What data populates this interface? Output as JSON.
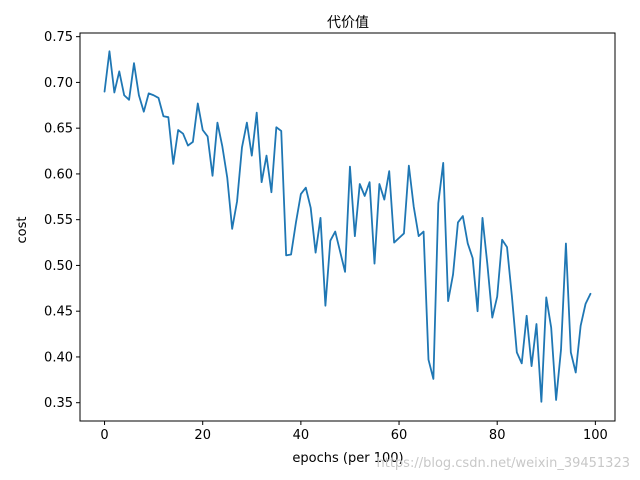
{
  "chart_data": {
    "type": "line",
    "title": "代价值",
    "xlabel": "epochs (per 100)",
    "ylabel": "cost",
    "xlim": [
      -5,
      104
    ],
    "ylim": [
      0.33,
      0.754
    ],
    "x_ticks": [
      0,
      20,
      40,
      60,
      80,
      100
    ],
    "y_ticks": [
      0.35,
      0.4,
      0.45,
      0.5,
      0.55,
      0.6,
      0.65,
      0.7,
      0.75
    ],
    "y_tick_labels": [
      "0.35",
      "0.40",
      "0.45",
      "0.50",
      "0.55",
      "0.60",
      "0.65",
      "0.70",
      "0.75"
    ],
    "grid": false,
    "series": [
      {
        "color": "#1f77b4",
        "x": [
          0,
          1,
          2,
          3,
          4,
          5,
          6,
          7,
          8,
          9,
          10,
          11,
          12,
          13,
          14,
          15,
          16,
          17,
          18,
          19,
          20,
          21,
          22,
          23,
          24,
          25,
          26,
          27,
          28,
          29,
          30,
          31,
          32,
          33,
          34,
          35,
          36,
          37,
          38,
          39,
          40,
          41,
          42,
          43,
          44,
          45,
          46,
          47,
          48,
          49,
          50,
          51,
          52,
          53,
          54,
          55,
          56,
          57,
          58,
          59,
          60,
          61,
          62,
          63,
          64,
          65,
          66,
          67,
          68,
          69,
          70,
          71,
          72,
          73,
          74,
          75,
          76,
          77,
          78,
          79,
          80,
          81,
          82,
          83,
          84,
          85,
          86,
          87,
          88,
          89,
          90,
          91,
          92,
          93,
          94,
          95,
          96,
          97,
          98,
          99
        ],
        "values": [
          0.69,
          0.734,
          0.689,
          0.712,
          0.686,
          0.681,
          0.721,
          0.686,
          0.668,
          0.688,
          0.686,
          0.683,
          0.663,
          0.662,
          0.611,
          0.648,
          0.644,
          0.631,
          0.635,
          0.677,
          0.648,
          0.641,
          0.598,
          0.656,
          0.63,
          0.596,
          0.54,
          0.57,
          0.629,
          0.656,
          0.62,
          0.667,
          0.591,
          0.62,
          0.58,
          0.651,
          0.647,
          0.511,
          0.512,
          0.547,
          0.578,
          0.585,
          0.563,
          0.514,
          0.552,
          0.456,
          0.527,
          0.537,
          0.515,
          0.493,
          0.608,
          0.532,
          0.589,
          0.576,
          0.591,
          0.502,
          0.589,
          0.572,
          0.603,
          0.525,
          0.53,
          0.535,
          0.609,
          0.564,
          0.532,
          0.537,
          0.397,
          0.376,
          0.568,
          0.612,
          0.461,
          0.49,
          0.547,
          0.554,
          0.524,
          0.508,
          0.45,
          0.552,
          0.501,
          0.443,
          0.466,
          0.528,
          0.52,
          0.466,
          0.405,
          0.393,
          0.445,
          0.39,
          0.436,
          0.351,
          0.465,
          0.432,
          0.353,
          0.408,
          0.524,
          0.405,
          0.383,
          0.434,
          0.458,
          0.469
        ]
      }
    ]
  },
  "watermark": "https://blog.csdn.net/weixin_39451323"
}
